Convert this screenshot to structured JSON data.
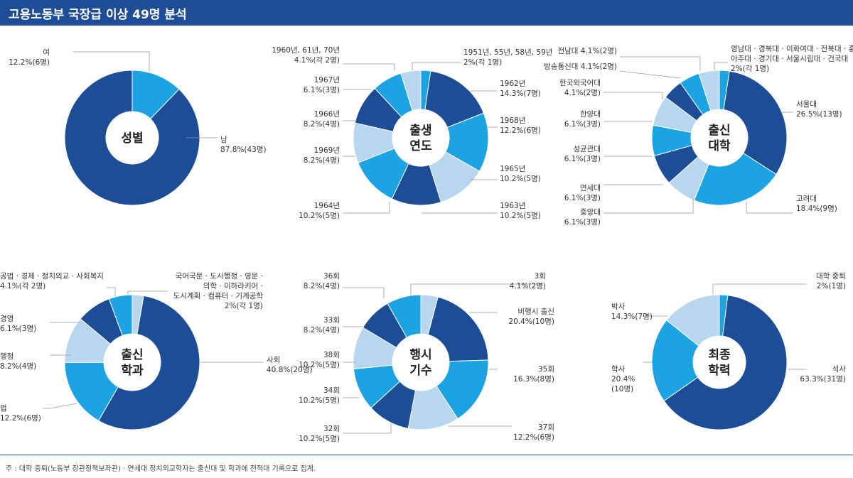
{
  "header": {
    "title": "고용노동부 국장급 이상 49명 분석"
  },
  "footnote": "주 : 대학 중퇴(노동부 장관정책보좌관) · 연세대 정치외교학자는 출신대 및 학과에 전적대 기록으로 집계.",
  "colors": {
    "dark": "#1d4d97",
    "mid": "#1ba3e4",
    "light": "#b8d7ee",
    "header": "#1d4d97"
  },
  "chart_data": [
    {
      "type": "pie",
      "center": [
        "성별"
      ],
      "slices": [
        {
          "label_lines": [
            "여",
            "12.2%(6명)"
          ],
          "value": 12.2,
          "color": "mid"
        },
        {
          "label_lines": [
            "남",
            "87.8%(43명)"
          ],
          "value": 87.8,
          "color": "dark"
        }
      ]
    },
    {
      "type": "pie",
      "center": [
        "출생",
        "연도"
      ],
      "slices": [
        {
          "label_lines": [
            "1951년, 55년, 58년, 59년",
            "2%(각 1명)"
          ],
          "value": 2.0,
          "color": "mid"
        },
        {
          "label_lines": [
            "1962년",
            "14.3%(7명)"
          ],
          "value": 14.3,
          "color": "dark"
        },
        {
          "label_lines": [
            "1968년",
            "12.2%(6명)"
          ],
          "value": 12.2,
          "color": "mid"
        },
        {
          "label_lines": [
            "1965년",
            "10.2%(5명)"
          ],
          "value": 10.2,
          "color": "light"
        },
        {
          "label_lines": [
            "1963년",
            "10.2%(5명)"
          ],
          "value": 10.2,
          "color": "dark"
        },
        {
          "label_lines": [
            "1964년",
            "10.2%(5명)"
          ],
          "value": 10.2,
          "color": "mid"
        },
        {
          "label_lines": [
            "1969년",
            "8.2%(4명)"
          ],
          "value": 8.2,
          "color": "light"
        },
        {
          "label_lines": [
            "1966년",
            "8.2%(4명)"
          ],
          "value": 8.2,
          "color": "dark"
        },
        {
          "label_lines": [
            "1967년",
            "6.1%(3명)"
          ],
          "value": 6.1,
          "color": "mid"
        },
        {
          "label_lines": [
            "1960년, 61년, 70년",
            "4.1%(각 2명)"
          ],
          "value": 4.1,
          "color": "light"
        }
      ]
    },
    {
      "type": "pie",
      "center": [
        "출신",
        "대학"
      ],
      "slices": [
        {
          "label_lines": [
            "영남대 · 경북대 · 이화여대 · 전북대 · 홍익대 ·",
            "아주대 · 경기대 · 서울시립대 · 건국대",
            "2%(각 1명)"
          ],
          "value": 2.0,
          "color": "mid"
        },
        {
          "label_lines": [
            "서울대",
            "26.5%(13명)"
          ],
          "value": 26.5,
          "color": "dark"
        },
        {
          "label_lines": [
            "고려대",
            "18.4%(9명)"
          ],
          "value": 18.4,
          "color": "mid"
        },
        {
          "label_lines": [
            "중앙대",
            "6.1%(3명)"
          ],
          "value": 6.1,
          "color": "light"
        },
        {
          "label_lines": [
            "연세대",
            "6.1%(3명)"
          ],
          "value": 6.1,
          "color": "dark"
        },
        {
          "label_lines": [
            "성균관대",
            "6.1%(3명)"
          ],
          "value": 6.1,
          "color": "mid"
        },
        {
          "label_lines": [
            "한양대",
            "6.1%(3명)"
          ],
          "value": 6.1,
          "color": "light"
        },
        {
          "label_lines": [
            "한국외국어대",
            "4.1%(2명)"
          ],
          "value": 4.1,
          "color": "dark"
        },
        {
          "label_lines": [
            "방송통신대 4.1%(2명)"
          ],
          "value": 4.1,
          "color": "mid"
        },
        {
          "label_lines": [
            "전남대 4.1%(2명)"
          ],
          "value": 4.1,
          "color": "light"
        }
      ]
    },
    {
      "type": "pie",
      "center": [
        "출신",
        "학과"
      ],
      "slices": [
        {
          "label_lines": [
            "국어국문 · 도시행정 · 영문 ·",
            "의학 · 이하라키어 ·",
            "도시계획 · 컴퓨터 · 기계공학",
            "2%(각 1명)"
          ],
          "value": 2.0,
          "color": "light"
        },
        {
          "label_lines": [
            "사회",
            "40.8%(20명)"
          ],
          "value": 40.8,
          "color": "dark"
        },
        {
          "label_lines": [
            "법",
            "12.2%(6명)"
          ],
          "value": 12.2,
          "color": "mid"
        },
        {
          "label_lines": [
            "행정",
            "8.2%(4명)"
          ],
          "value": 8.2,
          "color": "light"
        },
        {
          "label_lines": [
            "경영",
            "6.1%(3명)"
          ],
          "value": 6.1,
          "color": "dark"
        },
        {
          "label_lines": [
            "공법 · 경제 · 정치외교 · 사회복지",
            "4.1%(각 2명)"
          ],
          "value": 4.1,
          "color": "mid"
        }
      ]
    },
    {
      "type": "pie",
      "center": [
        "행시",
        "기수"
      ],
      "slices": [
        {
          "label_lines": [
            "3회",
            "4.1%(2명)"
          ],
          "value": 4.1,
          "color": "light"
        },
        {
          "label_lines": [
            "비행시 출신",
            "20.4%(10명)"
          ],
          "value": 20.4,
          "color": "dark"
        },
        {
          "label_lines": [
            "35회",
            "16.3%(8명)"
          ],
          "value": 16.3,
          "color": "mid"
        },
        {
          "label_lines": [
            "37회",
            "12.2%(6명)"
          ],
          "value": 12.2,
          "color": "light"
        },
        {
          "label_lines": [
            "32회",
            "10.2%(5명)"
          ],
          "value": 10.2,
          "color": "dark"
        },
        {
          "label_lines": [
            "34회",
            "10.2%(5명)"
          ],
          "value": 10.2,
          "color": "mid"
        },
        {
          "label_lines": [
            "38회",
            "10.2%(5명)"
          ],
          "value": 10.2,
          "color": "light"
        },
        {
          "label_lines": [
            "33회",
            "8.2%(4명)"
          ],
          "value": 8.2,
          "color": "dark"
        },
        {
          "label_lines": [
            "36회",
            "8.2%(4명)"
          ],
          "value": 8.2,
          "color": "mid"
        }
      ]
    },
    {
      "type": "pie",
      "center": [
        "최종",
        "학력"
      ],
      "slices": [
        {
          "label_lines": [
            "대학 중퇴",
            "2%(1명)"
          ],
          "value": 2.0,
          "color": "mid"
        },
        {
          "label_lines": [
            "석사",
            "63.3%(31명)"
          ],
          "value": 63.3,
          "color": "dark"
        },
        {
          "label_lines": [
            "학사",
            "20.4%",
            "(10명)"
          ],
          "value": 20.4,
          "color": "mid"
        },
        {
          "label_lines": [
            "박사",
            "14.3%(7명)"
          ],
          "value": 14.3,
          "color": "light"
        }
      ]
    }
  ]
}
